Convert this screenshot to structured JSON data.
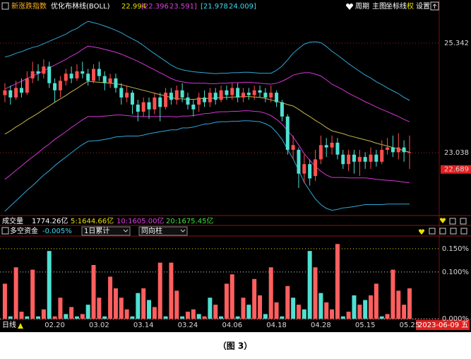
{
  "ui": {
    "header": {
      "indicator": "新涨跌指数",
      "study": "优化布林线(BOLL)",
      "mid": "22.994",
      "inner_low": "[22.396",
      "inner_high": "23.591]",
      "outer_low": "[21.978",
      "outer_high": "24.009]",
      "menu": [
        "周期",
        "主图",
        "坐标线",
        "权",
        "设置"
      ]
    },
    "volume_row": {
      "label": "成交量",
      "total": "1774.26亿",
      "ma5": "5:1644.66亿",
      "ma10": "10:1605.00亿",
      "ma20": "20:1675.45亿"
    },
    "flow_row": {
      "label": "多空资金",
      "value": "-0.005%",
      "select1": "1日累计",
      "select2": "同向柱"
    },
    "period": "日线",
    "cursor_date": "2023-06-09 五",
    "caption": "（图 3）"
  },
  "chart_data": [
    {
      "type": "candlestick",
      "categories": [
        null,
        null,
        null,
        null,
        null,
        null,
        null,
        null,
        null,
        "02.20",
        null,
        null,
        null,
        null,
        null,
        null,
        null,
        "03.02",
        null,
        null,
        null,
        null,
        null,
        null,
        null,
        "03.14",
        null,
        null,
        null,
        null,
        null,
        null,
        null,
        "03.24",
        null,
        null,
        null,
        null,
        null,
        null,
        null,
        "04.06",
        null,
        null,
        null,
        null,
        null,
        null,
        null,
        "04.18",
        null,
        null,
        null,
        null,
        null,
        null,
        null,
        "04.28",
        null,
        null,
        null,
        null,
        null,
        null,
        null,
        "05.15",
        null,
        null,
        null,
        null,
        null,
        null,
        null,
        "05.25"
      ],
      "open": [
        24.25,
        24.35,
        24.2,
        24.4,
        24.3,
        24.6,
        24.75,
        24.7,
        24.85,
        24.5,
        24.35,
        24.55,
        24.7,
        24.6,
        24.75,
        24.7,
        24.55,
        24.8,
        24.65,
        24.5,
        24.6,
        24.4,
        24.2,
        24.3,
        24.05,
        23.9,
        24.1,
        23.95,
        24.2,
        24.0,
        24.3,
        24.15,
        24.35,
        24.2,
        24.05,
        24.05,
        24.2,
        24.1,
        24.3,
        24.15,
        24.35,
        24.25,
        24.4,
        24.2,
        24.3,
        24.25,
        24.35,
        24.3,
        24.2,
        24.3,
        24.1,
        23.8,
        23.1,
        23.1,
        22.6,
        22.8,
        22.55,
        22.9,
        23.2,
        23.15,
        23.25,
        23.0,
        22.8,
        23.0,
        22.85,
        22.95,
        22.85,
        23.0,
        22.85,
        23.1,
        23.15,
        23.05,
        23.15,
        23.05
      ],
      "close": [
        24.35,
        24.2,
        24.4,
        24.3,
        24.6,
        24.75,
        24.7,
        24.85,
        24.5,
        24.35,
        24.55,
        24.7,
        24.6,
        24.75,
        24.7,
        24.55,
        24.8,
        24.65,
        24.5,
        24.6,
        24.4,
        24.2,
        24.3,
        24.05,
        23.9,
        24.1,
        23.95,
        24.2,
        24.0,
        24.3,
        24.15,
        24.35,
        24.2,
        24.05,
        23.95,
        24.2,
        24.1,
        24.3,
        24.15,
        24.35,
        24.25,
        24.4,
        24.2,
        24.3,
        24.25,
        24.35,
        24.3,
        24.2,
        24.3,
        24.1,
        23.8,
        23.1,
        23.2,
        22.6,
        22.8,
        22.5,
        22.9,
        23.2,
        23.15,
        23.25,
        23.0,
        22.8,
        23.0,
        22.85,
        22.95,
        22.85,
        23.0,
        22.85,
        23.1,
        23.15,
        23.05,
        23.15,
        23.05,
        23.05
      ],
      "high": [
        24.5,
        24.45,
        24.55,
        24.6,
        24.75,
        24.95,
        24.9,
        25.0,
        24.95,
        24.6,
        24.65,
        24.8,
        24.85,
        24.9,
        24.95,
        24.8,
        24.9,
        24.95,
        24.75,
        24.7,
        24.7,
        24.5,
        24.45,
        24.35,
        24.15,
        24.2,
        24.2,
        24.3,
        24.3,
        24.4,
        24.4,
        24.45,
        24.5,
        24.3,
        24.15,
        24.3,
        24.35,
        24.4,
        24.4,
        24.45,
        24.45,
        24.5,
        24.5,
        24.4,
        24.4,
        24.45,
        24.45,
        24.4,
        24.45,
        24.35,
        24.15,
        23.85,
        23.4,
        23.15,
        23.0,
        22.9,
        23.1,
        23.4,
        23.35,
        23.4,
        23.35,
        23.1,
        23.1,
        23.1,
        23.1,
        23.05,
        23.15,
        23.1,
        23.3,
        23.35,
        23.4,
        23.45,
        23.3,
        23.4
      ],
      "low": [
        24.1,
        24.05,
        24.15,
        24.2,
        24.25,
        24.5,
        24.55,
        24.6,
        24.4,
        24.1,
        24.2,
        24.45,
        24.5,
        24.55,
        24.6,
        24.45,
        24.5,
        24.55,
        24.35,
        24.4,
        24.3,
        24.05,
        24.1,
        23.85,
        23.7,
        23.8,
        23.75,
        23.85,
        23.7,
        23.95,
        24.05,
        24.05,
        24.1,
        23.95,
        23.8,
        23.9,
        24.0,
        24.0,
        24.05,
        24.1,
        24.15,
        24.15,
        24.1,
        24.1,
        24.15,
        24.15,
        24.2,
        24.1,
        24.1,
        24.0,
        23.7,
        23.0,
        22.9,
        22.3,
        22.4,
        22.35,
        22.45,
        22.8,
        22.95,
        23.0,
        22.9,
        22.7,
        22.65,
        22.6,
        22.55,
        22.7,
        22.7,
        22.75,
        22.8,
        23.0,
        22.95,
        22.9,
        22.85,
        22.7
      ],
      "up_color": "#ff4f4f",
      "down_color": "#4fe0d2",
      "lines": [
        {
          "color": "#c8b84a",
          "values": [
            23.43,
            23.5,
            23.58,
            23.65,
            23.73,
            23.8,
            23.87,
            23.95,
            24.02,
            24.1,
            24.17,
            24.24,
            24.32,
            24.39,
            24.47,
            24.54,
            24.53,
            24.52,
            24.51,
            24.5,
            24.49,
            24.47,
            24.44,
            24.41,
            24.38,
            24.35,
            24.32,
            24.29,
            24.26,
            24.23,
            24.2,
            24.17,
            24.17,
            24.16,
            24.16,
            24.17,
            24.18,
            24.18,
            24.19,
            24.2,
            24.2,
            24.21,
            24.21,
            24.22,
            24.22,
            24.21,
            24.2,
            24.18,
            24.15,
            24.12,
            24.09,
            24.05,
            24.02,
            23.95,
            23.87,
            23.8,
            23.72,
            23.65,
            23.57,
            23.5,
            23.47,
            23.44,
            23.4,
            23.37,
            23.34,
            23.31,
            23.28,
            23.24,
            23.21,
            23.18,
            23.15,
            23.12,
            23.08,
            23.05
          ]
        },
        {
          "color": "#d535d5",
          "values": [
            24.38,
            24.43,
            24.49,
            24.54,
            24.6,
            24.65,
            24.7,
            24.76,
            24.82,
            24.88,
            24.94,
            25.0,
            25.07,
            25.13,
            25.21,
            25.28,
            25.26,
            25.24,
            25.21,
            25.18,
            25.15,
            25.11,
            25.06,
            25.01,
            24.96,
            24.9,
            24.84,
            24.78,
            24.72,
            24.66,
            24.6,
            24.55,
            24.53,
            24.51,
            24.5,
            24.5,
            24.5,
            24.49,
            24.49,
            24.5,
            24.5,
            24.51,
            24.51,
            24.52,
            24.52,
            24.51,
            24.5,
            24.49,
            24.48,
            24.5,
            24.54,
            24.6,
            24.67,
            24.7,
            24.72,
            24.72,
            24.69,
            24.65,
            24.57,
            24.48,
            24.42,
            24.36,
            24.29,
            24.23,
            24.17,
            24.11,
            24.06,
            24.0,
            23.95,
            23.9,
            23.85,
            23.8,
            23.74,
            23.69
          ]
        },
        {
          "color": "#d535d5",
          "values": [
            22.48,
            22.57,
            22.67,
            22.76,
            22.86,
            22.95,
            23.04,
            23.14,
            23.22,
            23.32,
            23.4,
            23.48,
            23.57,
            23.65,
            23.73,
            23.8,
            23.8,
            23.8,
            23.81,
            23.82,
            23.83,
            23.83,
            23.82,
            23.81,
            23.8,
            23.8,
            23.8,
            23.8,
            23.8,
            23.8,
            23.8,
            23.79,
            23.81,
            23.81,
            23.82,
            23.84,
            23.86,
            23.87,
            23.89,
            23.9,
            23.9,
            23.91,
            23.91,
            23.92,
            23.92,
            23.91,
            23.9,
            23.87,
            23.82,
            23.74,
            23.64,
            23.5,
            23.37,
            23.2,
            23.02,
            22.88,
            22.75,
            22.65,
            22.57,
            22.52,
            22.52,
            22.52,
            22.51,
            22.51,
            22.51,
            22.51,
            22.5,
            22.48,
            22.47,
            22.46,
            22.45,
            22.44,
            22.42,
            22.41
          ]
        },
        {
          "color": "#2fa8d8",
          "values": [
            25.05,
            25.08,
            25.13,
            25.16,
            25.21,
            25.25,
            25.28,
            25.33,
            25.38,
            25.43,
            25.48,
            25.53,
            25.6,
            25.65,
            25.73,
            25.8,
            25.77,
            25.74,
            25.7,
            25.66,
            25.61,
            25.56,
            25.49,
            25.43,
            25.37,
            25.29,
            25.2,
            25.12,
            25.04,
            24.96,
            24.88,
            24.82,
            24.78,
            24.76,
            24.74,
            24.73,
            24.72,
            24.71,
            24.7,
            24.71,
            24.71,
            24.72,
            24.72,
            24.73,
            24.73,
            24.72,
            24.71,
            24.71,
            24.71,
            24.77,
            24.86,
            24.99,
            25.13,
            25.23,
            25.32,
            25.36,
            25.37,
            25.35,
            25.27,
            25.17,
            25.09,
            25.0,
            24.91,
            24.83,
            24.75,
            24.67,
            24.61,
            24.53,
            24.47,
            24.4,
            24.34,
            24.28,
            24.2,
            24.14
          ]
        },
        {
          "color": "#2fa8d8",
          "values": [
            21.81,
            21.92,
            22.03,
            22.14,
            22.25,
            22.35,
            22.46,
            22.57,
            22.66,
            22.77,
            22.86,
            22.95,
            23.04,
            23.13,
            23.21,
            23.28,
            23.29,
            23.3,
            23.32,
            23.34,
            23.37,
            23.38,
            23.39,
            23.39,
            23.39,
            23.41,
            23.44,
            23.46,
            23.48,
            23.5,
            23.52,
            23.52,
            23.56,
            23.56,
            23.58,
            23.61,
            23.64,
            23.65,
            23.68,
            23.69,
            23.69,
            23.7,
            23.7,
            23.71,
            23.71,
            23.7,
            23.69,
            23.65,
            23.59,
            23.47,
            23.32,
            23.11,
            22.91,
            22.67,
            22.42,
            22.24,
            22.07,
            21.95,
            21.87,
            21.83,
            21.85,
            21.88,
            21.89,
            21.91,
            21.93,
            21.95,
            21.95,
            21.95,
            21.95,
            21.96,
            21.96,
            21.96,
            21.96,
            21.96
          ]
        }
      ],
      "ylim": [
        21.72,
        25.98
      ],
      "yticks": [
        23.038,
        25.342
      ],
      "grid": true,
      "price_marker": 22.689
    },
    {
      "type": "bar",
      "values": [
        0.075,
        0.005,
        0.11,
        0.015,
        0.005,
        0.105,
        0.005,
        0.02,
        0.145,
        0.005,
        0.045,
        0.01,
        0.025,
        0.005,
        0.01,
        0.03,
        0.115,
        0.045,
        0.005,
        0.09,
        0.065,
        0.045,
        0.02,
        0.005,
        0.055,
        0.065,
        0.04,
        0.025,
        0.12,
        0.005,
        0.12,
        0.06,
        0.005,
        0.015,
        0.02,
        0.01,
        0.005,
        0.045,
        0.03,
        0.005,
        0.075,
        0.095,
        0.005,
        0.045,
        0.03,
        0.085,
        0.05,
        0.01,
        0.11,
        0.035,
        0.005,
        0.07,
        0.045,
        0.03,
        0.02,
        0.145,
        0.11,
        0.055,
        0.035,
        0.02,
        0.16,
        0.005,
        0.015,
        0.05,
        0.03,
        0.04,
        0.05,
        0.075,
        0.005,
        0.01,
        0.105,
        0.06,
        0.03,
        0.065
      ],
      "colors": [
        "#ff5f5f",
        "#4fe0d2",
        "#ff5f5f",
        "#ff5f5f",
        "#4fe0d2",
        "#ff5f5f",
        "#4fe0d2",
        "#ff5f5f",
        "#4fe0d2",
        "#ff5f5f",
        "#ff5f5f",
        "#4fe0d2",
        "#ff5f5f",
        "#4fe0d2",
        "#ff5f5f",
        "#4fe0d2",
        "#ff5f5f",
        "#ff5f5f",
        "#4fe0d2",
        "#ff5f5f",
        "#ff5f5f",
        "#ff5f5f",
        "#ff5f5f",
        "#4fe0d2",
        "#4fe0d2",
        "#ff5f5f",
        "#4fe0d2",
        "#ff5f5f",
        "#ff5f5f",
        "#4fe0d2",
        "#ff5f5f",
        "#ff5f5f",
        "#4fe0d2",
        "#ff5f5f",
        "#ff5f5f",
        "#4fe0d2",
        "#ff5f5f",
        "#4fe0d2",
        "#ff5f5f",
        "#4fe0d2",
        "#ff5f5f",
        "#ff5f5f",
        "#4fe0d2",
        "#ff5f5f",
        "#4fe0d2",
        "#ff5f5f",
        "#ff5f5f",
        "#4fe0d2",
        "#ff5f5f",
        "#ff5f5f",
        "#4fe0d2",
        "#ff5f5f",
        "#4fe0d2",
        "#ff5f5f",
        "#4fe0d2",
        "#4fe0d2",
        "#ff5f5f",
        "#4fe0d2",
        "#ff5f5f",
        "#ff5f5f",
        "#ff5f5f",
        "#4fe0d2",
        "#ff5f5f",
        "#4fe0d2",
        "#ff5f5f",
        "#4fe0d2",
        "#ff5f5f",
        "#ff5f5f",
        "#4fe0d2",
        "#ff5f5f",
        "#ff5f5f",
        "#ff5f5f",
        "#ff5f5f",
        "#ff5f5f"
      ],
      "ylim": [
        0,
        0.177
      ],
      "yticks": [
        {
          "value": 0,
          "label": "0.000%"
        },
        {
          "value": 0.1,
          "label": "0.100%"
        },
        {
          "value": 0.15,
          "label": "0.150%"
        }
      ],
      "grid": true
    }
  ]
}
